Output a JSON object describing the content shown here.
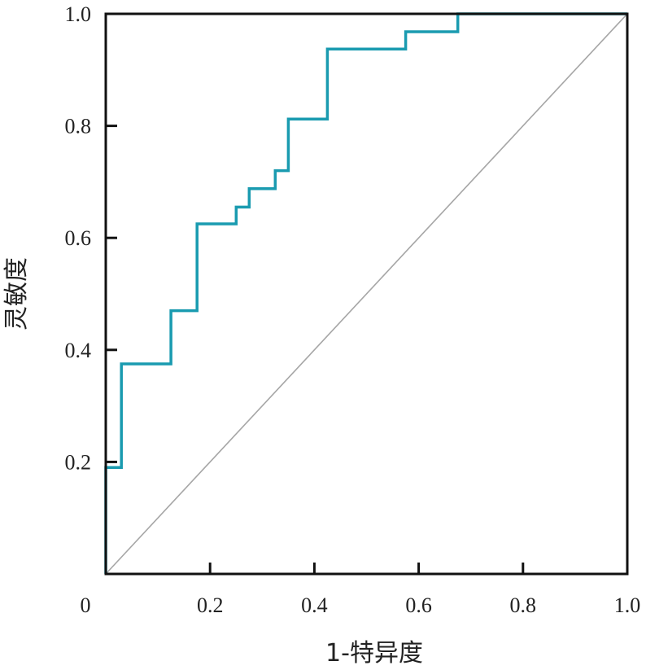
{
  "chart_data": {
    "type": "line",
    "xlabel": "1-特异度",
    "ylabel": "灵敏度",
    "xlim": [
      0,
      1
    ],
    "ylim": [
      0,
      1
    ],
    "x_ticks": [
      "0",
      "0.2",
      "0.4",
      "0.6",
      "0.8",
      "1.0"
    ],
    "y_ticks": [
      "0.2",
      "0.4",
      "0.6",
      "0.8",
      "1.0"
    ],
    "grid": false,
    "legend": "none",
    "series": [
      {
        "kind": "roc-step",
        "color": "#1a9bb0",
        "x": [
          0,
          0,
          0.03,
          0.03,
          0.125,
          0.125,
          0.175,
          0.175,
          0.25,
          0.25,
          0.275,
          0.275,
          0.325,
          0.325,
          0.35,
          0.35,
          0.425,
          0.425,
          0.575,
          0.575,
          0.675,
          0.675,
          1.0
        ],
        "y": [
          0,
          0.19,
          0.19,
          0.375,
          0.375,
          0.47,
          0.47,
          0.625,
          0.625,
          0.655,
          0.655,
          0.688,
          0.688,
          0.72,
          0.72,
          0.812,
          0.812,
          0.937,
          0.937,
          0.968,
          0.968,
          1.0,
          1.0
        ]
      },
      {
        "kind": "reference-diagonal",
        "color": "#a6a6a6",
        "x": [
          0,
          1
        ],
        "y": [
          0,
          1
        ]
      }
    ]
  }
}
